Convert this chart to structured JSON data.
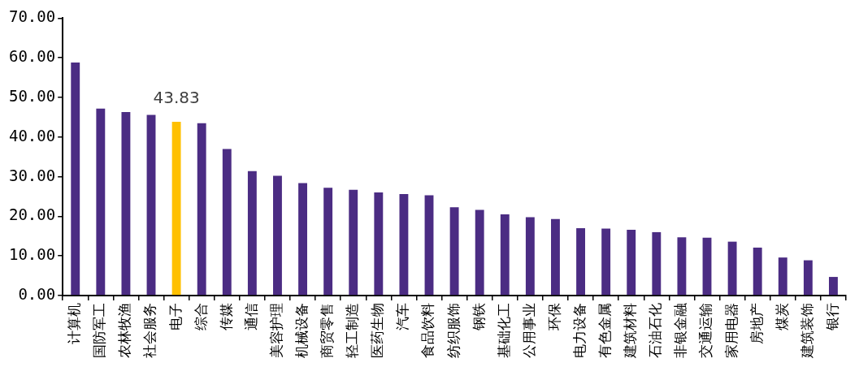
{
  "chart_data": {
    "type": "bar",
    "categories": [
      "计算机",
      "国防军工",
      "农林牧渔",
      "社会服务",
      "电子",
      "综合",
      "传媒",
      "通信",
      "美容护理",
      "机械设备",
      "商贸零售",
      "轻工制造",
      "医药生物",
      "汽车",
      "食品饮料",
      "纺织服饰",
      "钢铁",
      "基础化工",
      "公用事业",
      "环保",
      "电力设备",
      "有色金属",
      "建筑材料",
      "石油石化",
      "非银金融",
      "交通运输",
      "家用电器",
      "房地产",
      "煤炭",
      "建筑装饰",
      "银行"
    ],
    "values": [
      58.8,
      47.2,
      46.3,
      45.6,
      43.83,
      43.5,
      37.0,
      31.4,
      30.2,
      28.4,
      27.2,
      26.7,
      26.0,
      25.6,
      25.3,
      22.3,
      21.6,
      20.5,
      19.8,
      19.3,
      17.0,
      16.9,
      16.6,
      16.0,
      14.7,
      14.6,
      13.6,
      12.1,
      9.6,
      8.9,
      4.7
    ],
    "colors": [
      "#4b2c83",
      "#4b2c83",
      "#4b2c83",
      "#4b2c83",
      "#ffc000",
      "#4b2c83",
      "#4b2c83",
      "#4b2c83",
      "#4b2c83",
      "#4b2c83",
      "#4b2c83",
      "#4b2c83",
      "#4b2c83",
      "#4b2c83",
      "#4b2c83",
      "#4b2c83",
      "#4b2c83",
      "#4b2c83",
      "#4b2c83",
      "#4b2c83",
      "#4b2c83",
      "#4b2c83",
      "#4b2c83",
      "#4b2c83",
      "#4b2c83",
      "#4b2c83",
      "#4b2c83",
      "#4b2c83",
      "#4b2c83",
      "#4b2c83",
      "#4b2c83"
    ],
    "value_labels": [
      null,
      null,
      null,
      null,
      "43.83",
      null,
      null,
      null,
      null,
      null,
      null,
      null,
      null,
      null,
      null,
      null,
      null,
      null,
      null,
      null,
      null,
      null,
      null,
      null,
      null,
      null,
      null,
      null,
      null,
      null,
      null
    ],
    "ylim": [
      0,
      70
    ],
    "yticks": [
      {
        "value": 0,
        "label": "0.00"
      },
      {
        "value": 10,
        "label": "10.00"
      },
      {
        "value": 20,
        "label": "20.00"
      },
      {
        "value": 30,
        "label": "30.00"
      },
      {
        "value": 40,
        "label": "40.00"
      },
      {
        "value": 50,
        "label": "50.00"
      },
      {
        "value": 60,
        "label": "60.00"
      },
      {
        "value": 70,
        "label": "70.00"
      }
    ],
    "grid": false,
    "legend": false
  }
}
